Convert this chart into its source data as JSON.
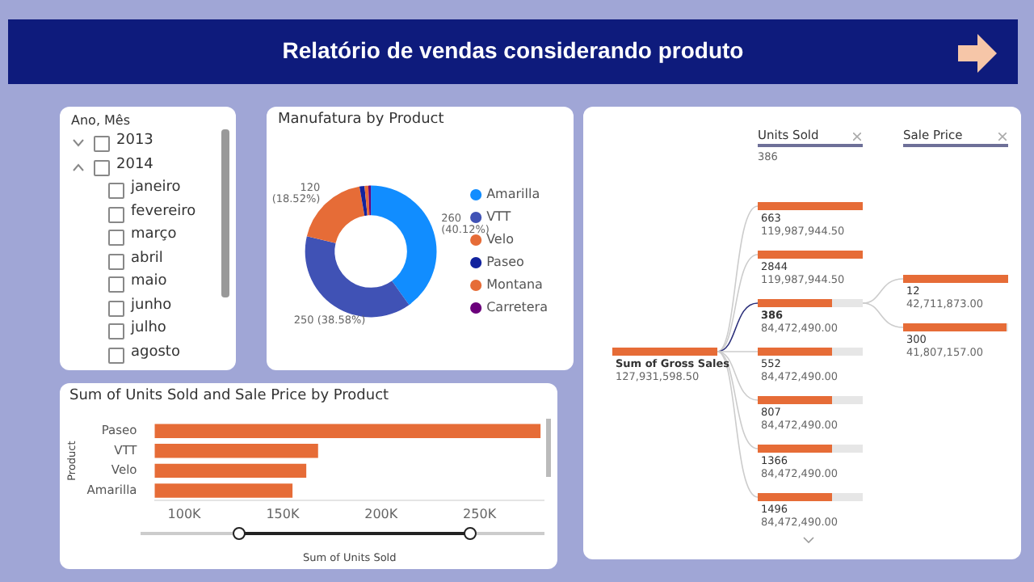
{
  "chart_data": [
    {
      "type": "other",
      "title": "Relatório de vendas considerando produto"
    },
    {
      "type": "other",
      "title": "Ano, Mês",
      "annotations": [
        "2013",
        "2014",
        "janeiro",
        "fevereiro",
        "março",
        "abril",
        "maio",
        "junho",
        "julho",
        "agosto"
      ]
    },
    {
      "type": "donut",
      "title": "Manufatura by Product",
      "categories": [
        "Amarilla",
        "VTT",
        "Velo",
        "Paseo",
        "Montana",
        "Carretera"
      ],
      "values": [
        260,
        250,
        120,
        8,
        6,
        4
      ],
      "colors": [
        "#118dff",
        "#4052b5",
        "#e66c37",
        "#12239e",
        "#e66c37",
        "#6b007b"
      ],
      "value_labels": [
        "260 (40.12%)",
        "250 (38.58%)",
        "120 (18.52%)",
        null,
        null,
        null
      ],
      "legend": "right"
    },
    {
      "type": "bar",
      "orientation": "horizontal",
      "title": "Sum of Units Sold and Sale Price by Product",
      "xlabel": "Sum of Units Sold",
      "ylabel": "Product",
      "categories": [
        "Paseo",
        "VTT",
        "Velo",
        "Amarilla"
      ],
      "values": [
        281000,
        168000,
        162000,
        155000
      ],
      "color": "#e66c37",
      "xlim": [
        85000,
        283000
      ],
      "xticks": [
        {
          "value": 100000,
          "label": "100K"
        },
        {
          "value": 150000,
          "label": "150K"
        },
        {
          "value": 200000,
          "label": "200K"
        },
        {
          "value": 250000,
          "label": "250K"
        }
      ]
    },
    {
      "type": "other",
      "annotations": [
        "Units Sold",
        "386",
        "Sale Price",
        "Sum of Gross Sales",
        "127,931,598.50",
        "663",
        "119,987,944.50",
        "2844",
        "119,987,944.50",
        "386",
        "84,472,490.00",
        "552",
        "84,472,490.00",
        "807",
        "84,472,490.00",
        "1366",
        "84,472,490.00",
        "1496",
        "84,472,490.00",
        "12",
        "42,711,873.00",
        "300",
        "41,807,157.00"
      ]
    }
  ]
}
